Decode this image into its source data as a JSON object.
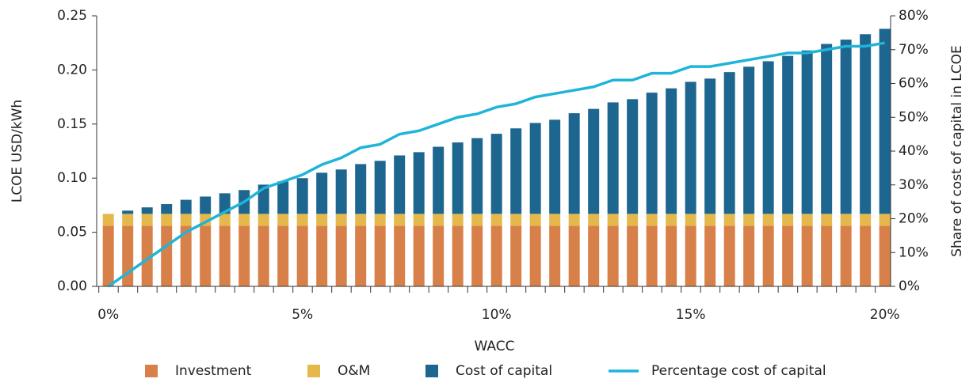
{
  "chart_data": {
    "type": "bar",
    "stacked": true,
    "ylabel": "LCOE USD/kWh",
    "y2label": "Share of cost of capital in LCOE",
    "xlabel": "WACC",
    "x": [
      0,
      0.5,
      1,
      1.5,
      2,
      2.5,
      3,
      3.5,
      4,
      4.5,
      5,
      5.5,
      6,
      6.5,
      7,
      7.5,
      8,
      8.5,
      9,
      9.5,
      10,
      10.5,
      11,
      11.5,
      12,
      12.5,
      13,
      13.5,
      14,
      14.5,
      15,
      15.5,
      16,
      16.5,
      17,
      17.5,
      18,
      18.5,
      19,
      19.5,
      20
    ],
    "xlim": [
      -0.3,
      20.15
    ],
    "xticks": [
      {
        "value": 0,
        "label": "0%"
      },
      {
        "value": 5,
        "label": "5%"
      },
      {
        "value": 10,
        "label": "10%"
      },
      {
        "value": 15,
        "label": "15%"
      },
      {
        "value": 20,
        "label": "20%"
      }
    ],
    "ylim": [
      0,
      0.25
    ],
    "yticks": [
      {
        "value": 0,
        "label": "0.00"
      },
      {
        "value": 0.05,
        "label": "0.05"
      },
      {
        "value": 0.1,
        "label": "0.10"
      },
      {
        "value": 0.15,
        "label": "0.15"
      },
      {
        "value": 0.2,
        "label": "0.20"
      },
      {
        "value": 0.25,
        "label": "0.25"
      }
    ],
    "y2lim": [
      0,
      80
    ],
    "y2ticks": [
      {
        "value": 0,
        "label": "0%"
      },
      {
        "value": 10,
        "label": "10%"
      },
      {
        "value": 20,
        "label": "20%"
      },
      {
        "value": 30,
        "label": "30%"
      },
      {
        "value": 40,
        "label": "40%"
      },
      {
        "value": 50,
        "label": "50%"
      },
      {
        "value": 60,
        "label": "60%"
      },
      {
        "value": 70,
        "label": "70%"
      },
      {
        "value": 80,
        "label": "80%"
      }
    ],
    "legend": "bottom",
    "series": [
      {
        "name": "Investment",
        "color": "#d8804a",
        "values": [
          0.056,
          0.056,
          0.056,
          0.056,
          0.056,
          0.056,
          0.056,
          0.056,
          0.056,
          0.056,
          0.056,
          0.056,
          0.056,
          0.056,
          0.056,
          0.056,
          0.056,
          0.056,
          0.056,
          0.056,
          0.056,
          0.056,
          0.056,
          0.056,
          0.056,
          0.056,
          0.056,
          0.056,
          0.056,
          0.056,
          0.056,
          0.056,
          0.056,
          0.056,
          0.056,
          0.056,
          0.056,
          0.056,
          0.056,
          0.056,
          0.056
        ]
      },
      {
        "name": "O&M",
        "color": "#e5b84c",
        "values": [
          0.011,
          0.011,
          0.011,
          0.011,
          0.011,
          0.011,
          0.011,
          0.011,
          0.011,
          0.011,
          0.011,
          0.011,
          0.011,
          0.011,
          0.011,
          0.011,
          0.011,
          0.011,
          0.011,
          0.011,
          0.011,
          0.011,
          0.011,
          0.011,
          0.011,
          0.011,
          0.011,
          0.011,
          0.011,
          0.011,
          0.011,
          0.011,
          0.011,
          0.011,
          0.011,
          0.011,
          0.011,
          0.011,
          0.011,
          0.011,
          0.011
        ]
      },
      {
        "name": "Cost of capital",
        "color": "#1d6690",
        "values": [
          0,
          0.003,
          0.006,
          0.009,
          0.013,
          0.016,
          0.019,
          0.022,
          0.027,
          0.03,
          0.033,
          0.038,
          0.041,
          0.046,
          0.049,
          0.054,
          0.057,
          0.062,
          0.066,
          0.07,
          0.074,
          0.079,
          0.084,
          0.087,
          0.093,
          0.097,
          0.103,
          0.106,
          0.112,
          0.116,
          0.122,
          0.125,
          0.131,
          0.136,
          0.141,
          0.146,
          0.151,
          0.157,
          0.161,
          0.166,
          0.171
        ]
      },
      {
        "name": "Percentage cost of capital",
        "color": "#1fb4d8",
        "type": "line",
        "axis": "y2",
        "values": [
          0,
          4,
          8,
          12,
          16,
          19,
          22,
          25,
          29,
          31,
          33,
          36,
          38,
          41,
          42,
          45,
          46,
          48,
          50,
          51,
          53,
          54,
          56,
          57,
          58,
          59,
          61,
          61,
          63,
          63,
          65,
          65,
          66,
          67,
          68,
          69,
          69,
          70,
          71,
          71,
          72
        ]
      }
    ]
  }
}
